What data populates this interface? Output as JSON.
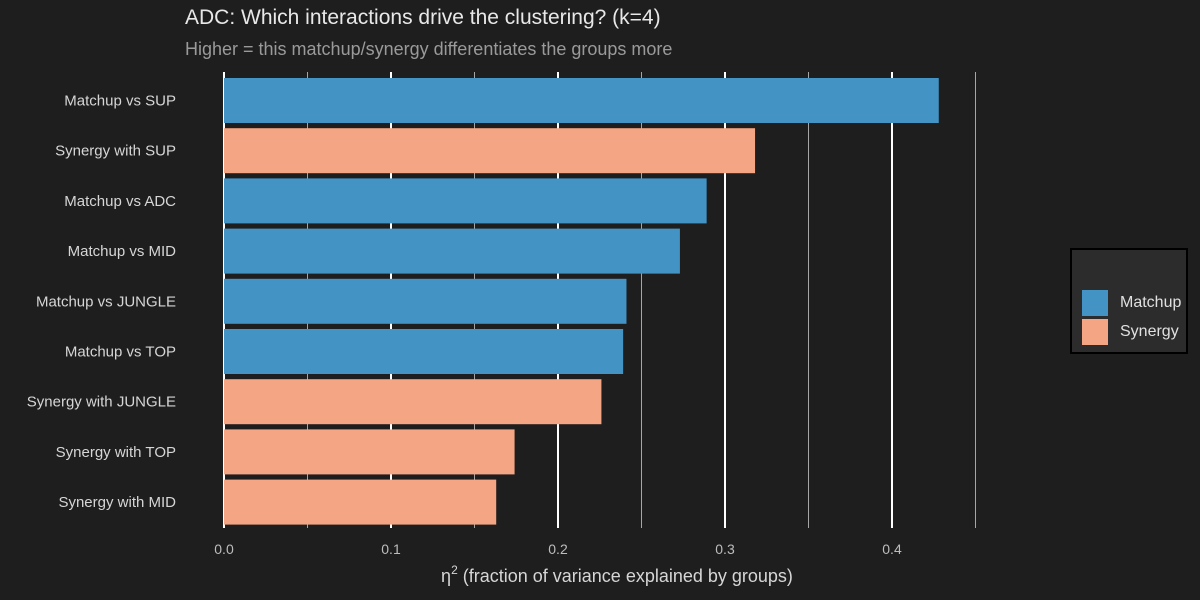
{
  "chart_data": {
    "type": "bar",
    "orientation": "horizontal",
    "title": "ADC: Which interactions drive the clustering? (k=4)",
    "subtitle": "Higher = this matchup/synergy differentiates the groups more",
    "xlabel_prefix": "η",
    "xlabel_sup": "2",
    "xlabel_rest": " (fraction of variance explained by groups)",
    "xlim": [
      0,
      0.45
    ],
    "xticks": [
      {
        "value": 0.0,
        "label": "0.0"
      },
      {
        "value": 0.1,
        "label": "0.1"
      },
      {
        "value": 0.2,
        "label": "0.2"
      },
      {
        "value": 0.3,
        "label": "0.3"
      },
      {
        "value": 0.4,
        "label": "0.4"
      }
    ],
    "minor_gridlines": [
      0.05,
      0.15,
      0.25,
      0.35,
      0.45
    ],
    "bars": [
      {
        "label": "Matchup vs SUP",
        "value": 0.428,
        "type": "Matchup"
      },
      {
        "label": "Synergy with SUP",
        "value": 0.318,
        "type": "Synergy"
      },
      {
        "label": "Matchup vs ADC",
        "value": 0.289,
        "type": "Matchup"
      },
      {
        "label": "Matchup vs MID",
        "value": 0.273,
        "type": "Matchup"
      },
      {
        "label": "Matchup vs JUNGLE",
        "value": 0.241,
        "type": "Matchup"
      },
      {
        "label": "Matchup vs TOP",
        "value": 0.239,
        "type": "Matchup"
      },
      {
        "label": "Synergy with JUNGLE",
        "value": 0.226,
        "type": "Synergy"
      },
      {
        "label": "Synergy with TOP",
        "value": 0.174,
        "type": "Synergy"
      },
      {
        "label": "Synergy with MID",
        "value": 0.163,
        "type": "Synergy"
      }
    ],
    "legend": [
      {
        "name": "Matchup",
        "color": "#4394c5"
      },
      {
        "name": "Synergy",
        "color": "#f4a583"
      }
    ]
  }
}
